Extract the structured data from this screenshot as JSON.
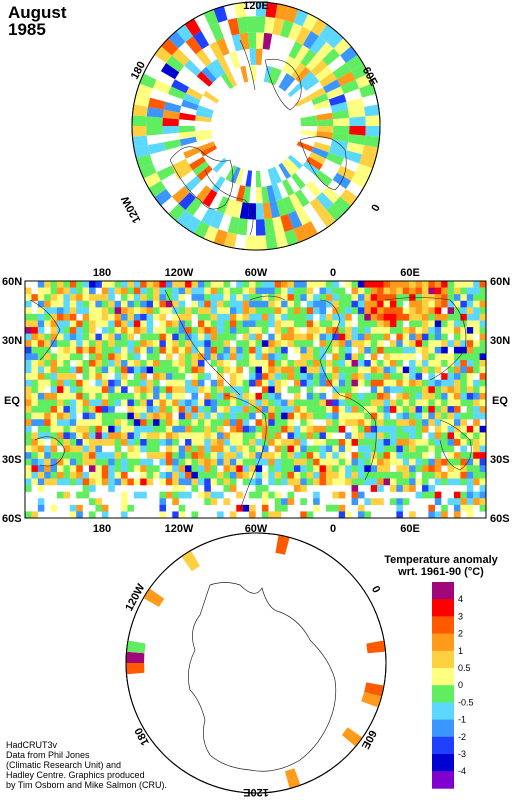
{
  "header": {
    "month": "August",
    "year": "1985"
  },
  "map": {
    "lat_labels": [
      "60N",
      "30N",
      "EQ",
      "30S",
      "60S"
    ],
    "lon_labels": [
      "180",
      "120W",
      "60W",
      "0",
      "60E"
    ],
    "north_polar_labels": [
      "120E",
      "60E",
      "0",
      "120W",
      "180"
    ],
    "south_polar_labels": [
      "120W",
      "0",
      "60E",
      "120E",
      "180"
    ]
  },
  "legend": {
    "title_line1": "Temperature anomaly",
    "title_line2": "wrt. 1961-90  (°C)",
    "levels": [
      "4",
      "3",
      "2",
      "1",
      "0.5",
      "0",
      "-0.5",
      "-1",
      "-2",
      "-3",
      "-4"
    ],
    "colors": [
      "#a0087a",
      "#ff0000",
      "#ff5a00",
      "#ff9a1a",
      "#ffd040",
      "#ffff80",
      "#60ee60",
      "#5cd8ff",
      "#3c96ff",
      "#2040ff",
      "#0000d0",
      "#8000d0"
    ]
  },
  "credits": [
    "HadCRUT3v",
    "Data from Phil Jones",
    "(Climatic Research Unit) and",
    "Hadley Centre.  Graphics produced",
    "by Tim Osborn and Mike Salmon (CRU)."
  ]
}
